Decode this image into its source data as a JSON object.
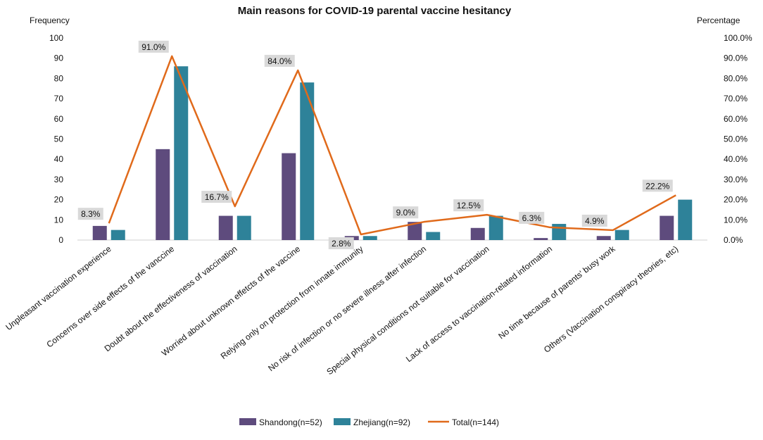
{
  "chart_data": {
    "type": "bar",
    "title": "Main reasons for COVID-19 parental vaccine hesitancy",
    "y_left_label": "Frequency",
    "y_right_label": "Percentage",
    "ylim_left": [
      0,
      100
    ],
    "ylim_right": [
      0,
      100
    ],
    "left_ticks": [
      "0",
      "10",
      "20",
      "30",
      "40",
      "50",
      "60",
      "70",
      "80",
      "90",
      "100"
    ],
    "right_ticks": [
      "0.0%",
      "10.0%",
      "20.0%",
      "30.0%",
      "40.0%",
      "50.0%",
      "60.0%",
      "70.0%",
      "80.0%",
      "90.0%",
      "100.0%"
    ],
    "categories": [
      "Unpleasant vaccination experience",
      "Concerns over side effects of the vanccine",
      "Doubt about the effectiveness of vaccination",
      "Worried about unknown effetcts of the vaccine",
      "Relying only on protection from innate immunity",
      "No risk of infection or no severe illness after infection",
      "Special physical conditions not suitable for vaccination",
      "Lack of access to vaccination-related information",
      "No time because of parents' busy work",
      "Others (Vaccination conspiracy theories, etc)"
    ],
    "series": [
      {
        "name": "Shandong(n=52)",
        "type": "bar",
        "color": "#5e4b7d",
        "values": [
          7,
          45,
          12,
          43,
          2,
          9,
          6,
          1,
          2,
          12
        ]
      },
      {
        "name": "Zhejiang(n=92)",
        "type": "bar",
        "color": "#2e8299",
        "values": [
          5,
          86,
          12,
          78,
          2,
          4,
          12,
          8,
          5,
          20
        ]
      },
      {
        "name": "Total(n=144)",
        "type": "line",
        "color": "#e06a1b",
        "values": [
          8.3,
          91.0,
          16.7,
          84.0,
          2.8,
          9.0,
          12.5,
          6.3,
          4.9,
          22.2
        ]
      }
    ],
    "data_labels": [
      "8.3%",
      "91.0%",
      "16.7%",
      "84.0%",
      "2.8%",
      "9.0%",
      "12.5%",
      "6.3%",
      "4.9%",
      "22.2%"
    ],
    "legend_position": "bottom-center",
    "grid": false
  }
}
